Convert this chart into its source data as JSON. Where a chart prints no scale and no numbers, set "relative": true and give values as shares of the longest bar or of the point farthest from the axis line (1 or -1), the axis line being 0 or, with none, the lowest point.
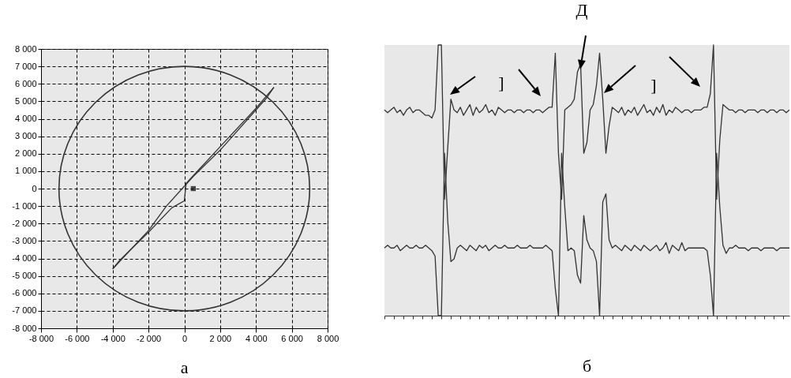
{
  "chart_data": [
    {
      "type": "line",
      "title": "а",
      "xlim": [
        -8000,
        8000
      ],
      "ylim": [
        -8000,
        8000
      ],
      "grid": true,
      "xticks": [
        {
          "value": -8000,
          "label": "-8 000"
        },
        {
          "value": -6000,
          "label": "-6 000"
        },
        {
          "value": -4000,
          "label": "-4 000"
        },
        {
          "value": -2000,
          "label": "-2 000"
        },
        0,
        {
          "value": 2000,
          "label": "2 000"
        },
        {
          "value": 4000,
          "label": "4 000"
        },
        {
          "value": 6000,
          "label": "6 000"
        },
        {
          "value": 8000,
          "label": "8 000"
        }
      ],
      "yticks": [
        {
          "value": -8000,
          "label": "-8 000"
        },
        {
          "value": -7000,
          "label": "-7 000"
        },
        {
          "value": -6000,
          "label": "-6 000"
        },
        {
          "value": -5000,
          "label": "-5 000"
        },
        {
          "value": -4000,
          "label": "-4 000"
        },
        {
          "value": -3000,
          "label": "-3 000"
        },
        {
          "value": -2000,
          "label": "-2 000"
        },
        {
          "value": -1000,
          "label": "-1 000"
        },
        0,
        {
          "value": 1000,
          "label": "1 000"
        },
        {
          "value": 2000,
          "label": "2 000"
        },
        {
          "value": 3000,
          "label": "3 000"
        },
        {
          "value": 4000,
          "label": "4 000"
        },
        {
          "value": 5000,
          "label": "5 000"
        },
        {
          "value": 6000,
          "label": "6 000"
        },
        {
          "value": 7000,
          "label": "7 000"
        },
        {
          "value": 8000,
          "label": "8 000"
        }
      ],
      "series": [
        {
          "color": "#333333",
          "x": [
            -4000,
            -2000,
            -1000,
            500,
            2000,
            4600,
            5000
          ],
          "values": [
            -4600,
            -2400,
            -1000,
            700,
            2200,
            5200,
            5800
          ]
        },
        {
          "color": "#333333",
          "x": [
            -4000,
            -3600,
            -2000,
            -700,
            0,
            100,
            2000,
            4000,
            5000
          ],
          "values": [
            -4600,
            -4100,
            -2500,
            -1100,
            -700,
            300,
            2400,
            4600,
            5800
          ]
        },
        {
          "type": "scatter",
          "marker": "square",
          "color": "#000000",
          "x": [
            500
          ],
          "values": [
            0
          ]
        }
      ]
    },
    {
      "type": "line",
      "title": "б",
      "relative": true,
      "annotations": [
        "Д",
        "]",
        "]"
      ],
      "categories": [
        null,
        null,
        null,
        null,
        null,
        null,
        null,
        null,
        null,
        null,
        null,
        null,
        null,
        null,
        null,
        null,
        null,
        null,
        null,
        null,
        null,
        null,
        null,
        null,
        null,
        null,
        null,
        null,
        null,
        null,
        null,
        null,
        null,
        null,
        null,
        null,
        null,
        null,
        null,
        null,
        null,
        null,
        null,
        null,
        null,
        null,
        null,
        null,
        null,
        null,
        null,
        null,
        null,
        null,
        null,
        null,
        null,
        null,
        null,
        null,
        null,
        null,
        null,
        null,
        null,
        null,
        null,
        null,
        null,
        null,
        null,
        null,
        null,
        null,
        null,
        null,
        null,
        null,
        null,
        null,
        null,
        null,
        null,
        null,
        null,
        null,
        null,
        null,
        null,
        null,
        null,
        null,
        null,
        null,
        null,
        null,
        null,
        null,
        null,
        null,
        null,
        null,
        null,
        null,
        null,
        null,
        null,
        null,
        null,
        null,
        null,
        null,
        null,
        null,
        null,
        null,
        null,
        null,
        null,
        null,
        null,
        null,
        null,
        null,
        null,
        null,
        null,
        null,
        null
      ],
      "series": [
        {
          "color": "#333333",
          "values": [
            0.76,
            0.75,
            0.76,
            0.77,
            0.75,
            0.76,
            0.74,
            0.76,
            0.77,
            0.75,
            0.76,
            0.76,
            0.75,
            0.74,
            0.74,
            0.73,
            0.76,
            1,
            1,
            0.43,
            0.62,
            0.8,
            0.76,
            0.75,
            0.77,
            0.74,
            0.76,
            0.78,
            0.74,
            0.77,
            0.75,
            0.76,
            0.78,
            0.75,
            0.76,
            0.74,
            0.77,
            0.76,
            0.75,
            0.76,
            0.76,
            0.75,
            0.76,
            0.76,
            0.75,
            0.76,
            0.76,
            0.75,
            0.76,
            0.76,
            0.75,
            0.76,
            0.77,
            0.77,
            0.97,
            0.6,
            0.43,
            0.76,
            0.77,
            0.78,
            0.8,
            0.9,
            0.93,
            0.6,
            0.64,
            0.76,
            0.78,
            0.85,
            0.97,
            0.8,
            0.6,
            0.7,
            0.77,
            0.76,
            0.75,
            0.77,
            0.74,
            0.76,
            0.75,
            0.77,
            0.74,
            0.76,
            0.78,
            0.75,
            0.76,
            0.74,
            0.77,
            0.75,
            0.78,
            0.74,
            0.76,
            0.75,
            0.77,
            0.76,
            0.75,
            0.76,
            0.76,
            0.75,
            0.76,
            0.76,
            0.76,
            0.77,
            0.77,
            0.82,
            1,
            0.43,
            0.65,
            0.78,
            0.77,
            0.76,
            0.76,
            0.75,
            0.76,
            0.76,
            0.75,
            0.76,
            0.76,
            0.76,
            0.75,
            0.76,
            0.76,
            0.75,
            0.76,
            0.76,
            0.75,
            0.76,
            0.76,
            0.75,
            0.76
          ]
        },
        {
          "color": "#333333",
          "values": [
            0.25,
            0.26,
            0.25,
            0.25,
            0.26,
            0.24,
            0.25,
            0.26,
            0.25,
            0.25,
            0.26,
            0.25,
            0.25,
            0.26,
            0.25,
            0.24,
            0.22,
            0,
            0,
            0.6,
            0.35,
            0.2,
            0.21,
            0.25,
            0.26,
            0.25,
            0.24,
            0.26,
            0.25,
            0.24,
            0.26,
            0.25,
            0.26,
            0.24,
            0.25,
            0.26,
            0.25,
            0.25,
            0.26,
            0.25,
            0.25,
            0.25,
            0.26,
            0.25,
            0.25,
            0.25,
            0.26,
            0.25,
            0.25,
            0.25,
            0.25,
            0.26,
            0.25,
            0.24,
            0.1,
            0,
            0.6,
            0.4,
            0.24,
            0.25,
            0.24,
            0.15,
            0.12,
            0.37,
            0.28,
            0.25,
            0.24,
            0.2,
            0,
            0.42,
            0.45,
            0.28,
            0.25,
            0.26,
            0.25,
            0.24,
            0.26,
            0.25,
            0.24,
            0.26,
            0.25,
            0.24,
            0.26,
            0.25,
            0.24,
            0.25,
            0.26,
            0.24,
            0.25,
            0.27,
            0.23,
            0.26,
            0.25,
            0.24,
            0.27,
            0.24,
            0.25,
            0.25,
            0.25,
            0.25,
            0.25,
            0.25,
            0.24,
            0.15,
            0,
            0.6,
            0.4,
            0.26,
            0.23,
            0.25,
            0.25,
            0.26,
            0.25,
            0.25,
            0.25,
            0.24,
            0.25,
            0.25,
            0.25,
            0.24,
            0.25,
            0.25,
            0.25,
            0.25,
            0.24,
            0.25,
            0.25,
            0.25,
            0.25
          ]
        }
      ]
    }
  ]
}
